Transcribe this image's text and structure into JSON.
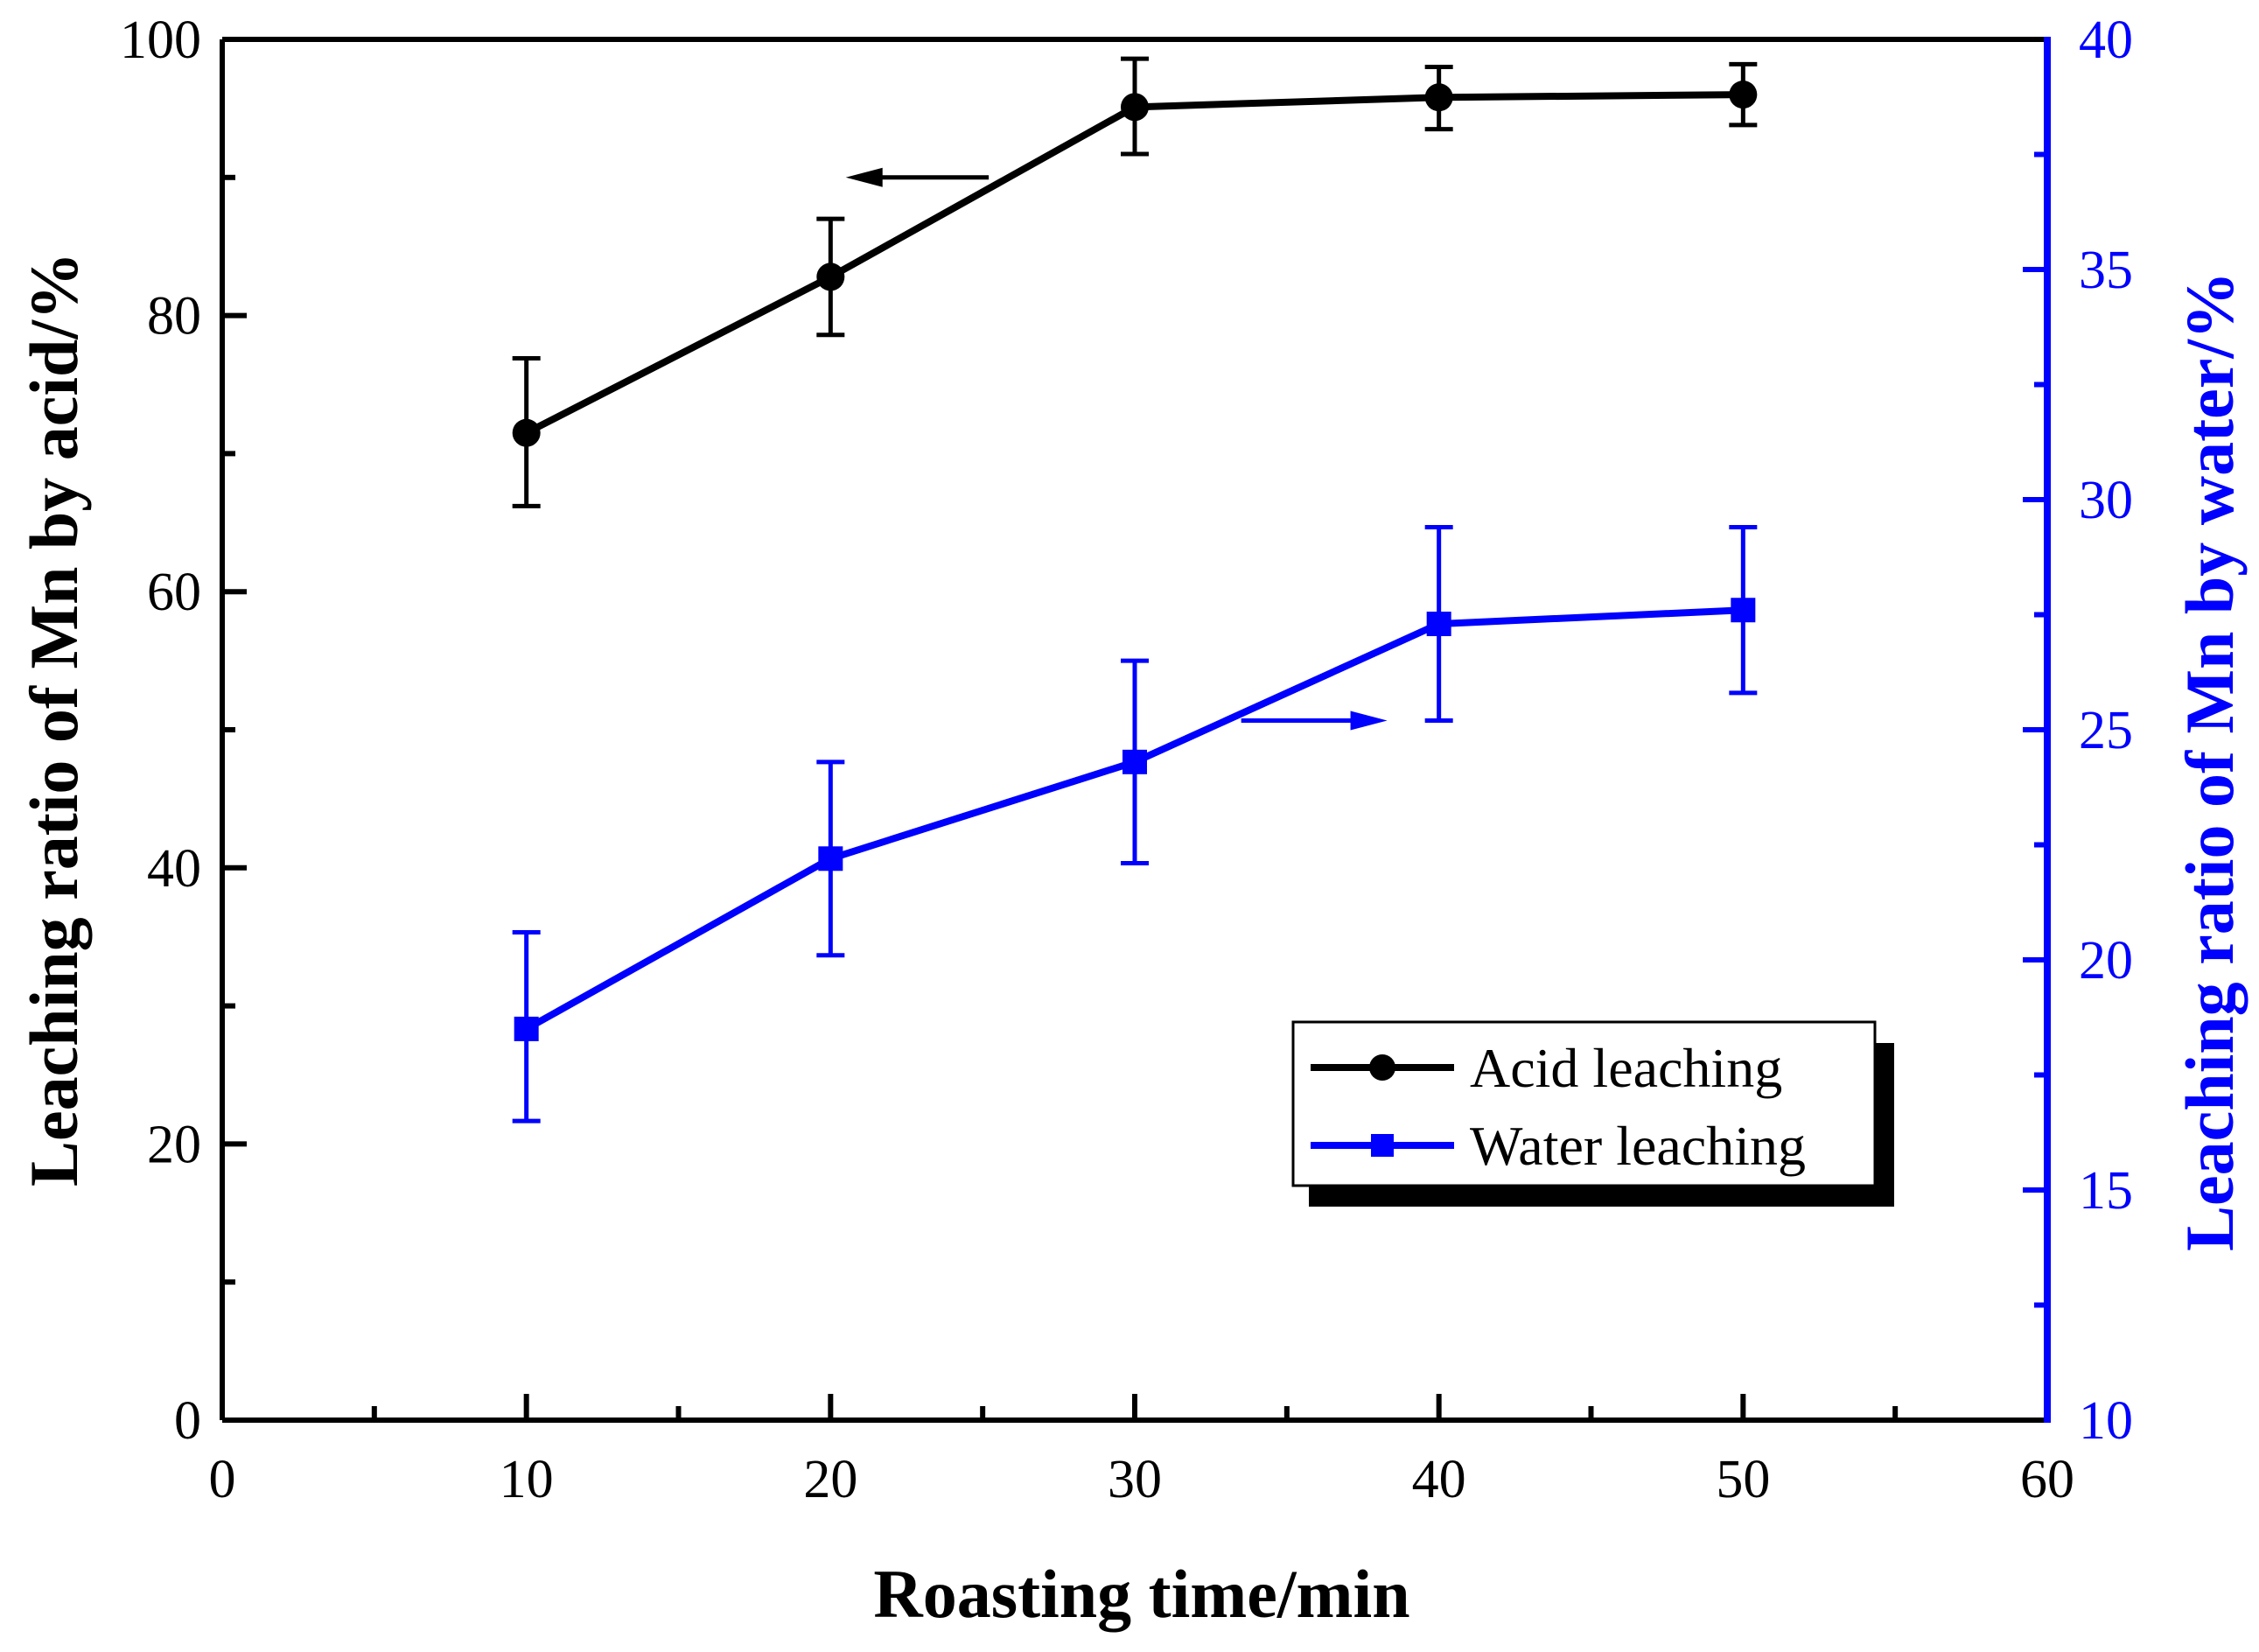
{
  "chart_data": {
    "type": "line",
    "xlabel": "Roasting time/min",
    "ylabel_left": "Leaching ratio of Mn by acid/%",
    "ylabel_right": "Leaching ratio of Mn by water/%",
    "xlim": [
      0,
      60
    ],
    "ylim_left": [
      0,
      100
    ],
    "ylim_right": [
      10,
      40
    ],
    "x_ticks": [
      0,
      10,
      20,
      30,
      40,
      50,
      60
    ],
    "x_tick_labels": [
      "0",
      "10",
      "20",
      "30",
      "40",
      "50",
      "60"
    ],
    "x_minor_ticks": [
      5,
      15,
      25,
      35,
      45,
      55
    ],
    "y_left_ticks": [
      0,
      20,
      40,
      60,
      80,
      100
    ],
    "y_left_tick_labels": [
      "0",
      "20",
      "40",
      "60",
      "80",
      "100"
    ],
    "y_left_minor_ticks": [
      10,
      30,
      50,
      70,
      90
    ],
    "y_right_ticks": [
      10,
      15,
      20,
      25,
      30,
      35,
      40
    ],
    "y_right_tick_labels": [
      "10",
      "15",
      "20",
      "25",
      "30",
      "35",
      "40"
    ],
    "y_right_minor_ticks": [
      12.5,
      17.5,
      22.5,
      27.5,
      32.5,
      37.5
    ],
    "legend_position": "lower-right",
    "colors": {
      "acid": "#000000",
      "water": "#0000ff"
    },
    "series": [
      {
        "name": "Acid leaching",
        "axis": "left",
        "marker": "circle",
        "x": [
          10,
          20,
          30,
          40,
          50
        ],
        "y": [
          71.5,
          82.8,
          95.1,
          95.8,
          96.0
        ],
        "err_low": [
          66.2,
          78.6,
          91.7,
          93.5,
          93.8
        ],
        "err_high": [
          76.9,
          87.0,
          98.6,
          98.0,
          98.2
        ]
      },
      {
        "name": "Water leaching",
        "axis": "right",
        "marker": "square",
        "x": [
          10,
          20,
          30,
          40,
          50
        ],
        "y": [
          18.5,
          22.2,
          24.3,
          27.3,
          27.6
        ],
        "err_low": [
          16.5,
          20.1,
          22.1,
          25.2,
          25.8
        ],
        "err_high": [
          20.6,
          24.3,
          26.5,
          29.4,
          29.4
        ]
      }
    ],
    "annotations": [
      {
        "name": "acid-axis-arrow",
        "direction": "left",
        "x_from": 25.2,
        "x_to": 20.5,
        "y": 90,
        "axis": "left"
      },
      {
        "name": "water-axis-arrow",
        "direction": "right",
        "x_from": 33.5,
        "x_to": 38.3,
        "y": 25.2,
        "axis": "right"
      }
    ]
  }
}
